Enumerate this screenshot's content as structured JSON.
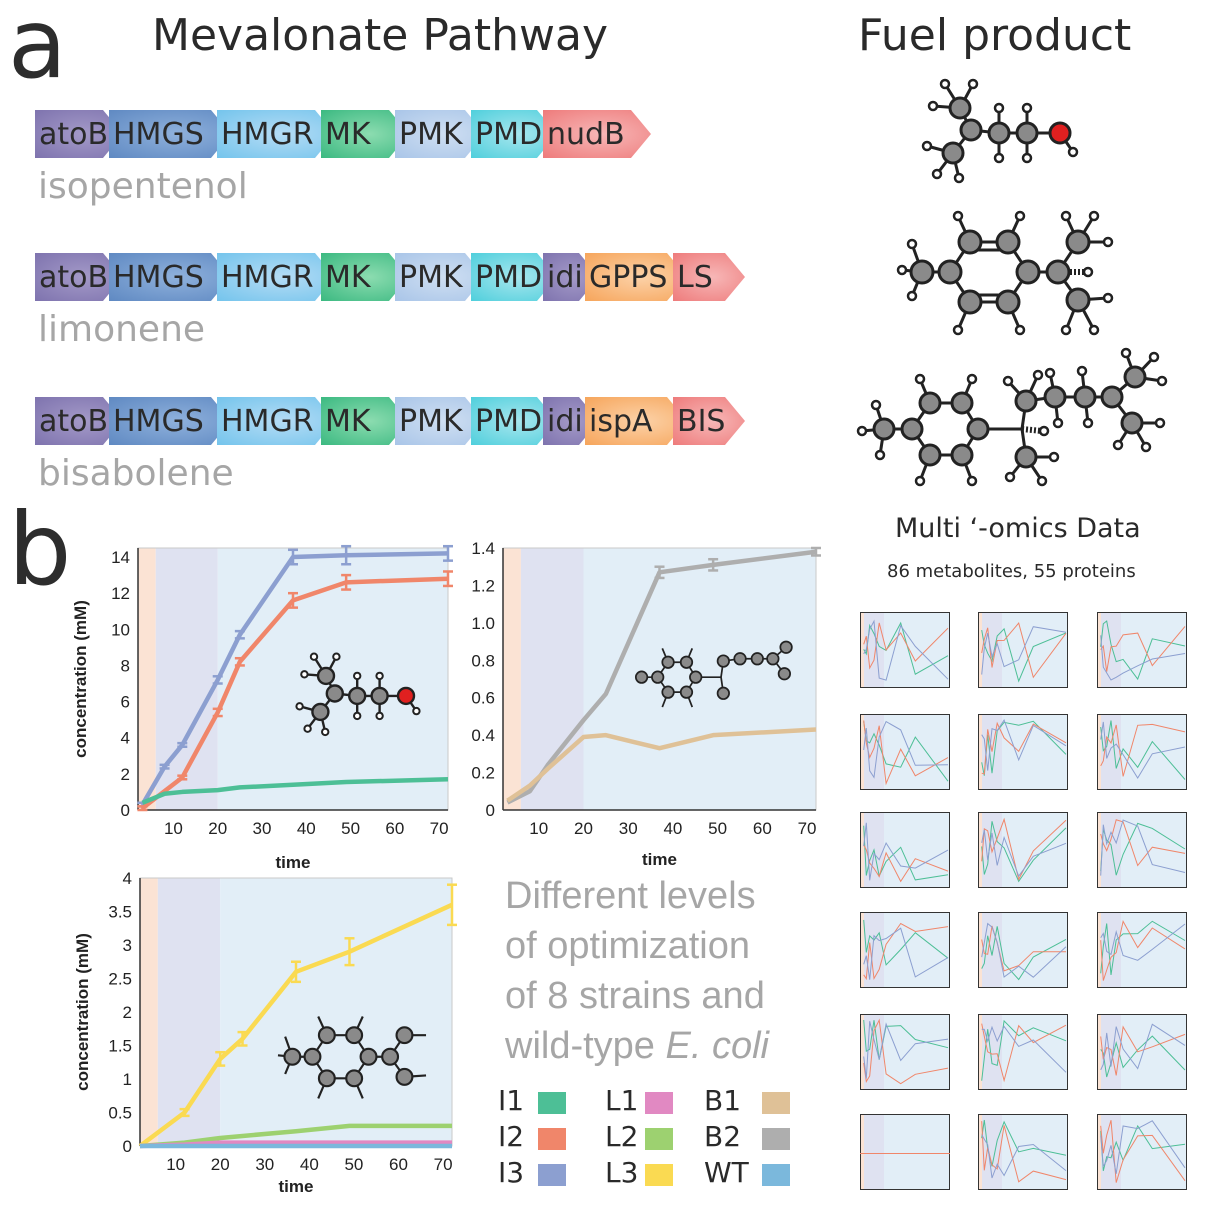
{
  "panel_a": {
    "letter": "a",
    "title_pathway": "Mevalonate Pathway",
    "title_product": "Fuel product",
    "pathways": [
      {
        "label": "isopentenol",
        "genes": [
          "atoB",
          "HMGS",
          "HMGR",
          "MK",
          "PMK",
          "PMD",
          "nudB"
        ]
      },
      {
        "label": "limonene",
        "genes": [
          "atoB",
          "HMGS",
          "HMGR",
          "MK",
          "PMK",
          "PMD",
          "idi",
          "GPPS",
          "LS"
        ]
      },
      {
        "label": "bisabolene",
        "genes": [
          "atoB",
          "HMGS",
          "HMGR",
          "MK",
          "PMK",
          "PMD",
          "idi",
          "ispA",
          "BIS"
        ]
      }
    ],
    "gene_colors": {
      "atoB": [
        "#a49ac8",
        "#7e73ae"
      ],
      "HMGS": [
        "#8fb1dc",
        "#5f89c2"
      ],
      "HMGR": [
        "#b5dcf5",
        "#74c4ec"
      ],
      "MK": [
        "#8cdcb0",
        "#3bb981"
      ],
      "PMK": [
        "#cfdff2",
        "#a9c5e8"
      ],
      "PMD": [
        "#a7e6ee",
        "#4fcfdc"
      ],
      "idi": [
        "#a49ac8",
        "#7e73ae"
      ],
      "GPPS": [
        "#fcd2a8",
        "#f6a55b"
      ],
      "ispA": [
        "#fcd2a8",
        "#f6a55b"
      ],
      "nudB": [
        "#f7b7b7",
        "#ee7b7b"
      ],
      "LS": [
        "#f7b7b7",
        "#ee7b7b"
      ],
      "BIS": [
        "#f7b7b7",
        "#ee7b7b"
      ]
    }
  },
  "panel_b": {
    "letter": "b",
    "omics_title": "Multi ‘-omics Data",
    "omics_subtitle": "86 metabolites, 55 proteins",
    "description": [
      "Different levels",
      "of optimization",
      "of 8 strains and"
    ],
    "description_last_prefix": "wild-type ",
    "description_last_italic": "E. coli",
    "legend": [
      {
        "label": "I1",
        "color": "#4dbf96"
      },
      {
        "label": "I2",
        "color": "#f0866a"
      },
      {
        "label": "I3",
        "color": "#8c9fd0"
      },
      {
        "label": "L1",
        "color": "#e189c2"
      },
      {
        "label": "L2",
        "color": "#9dd170"
      },
      {
        "label": "L3",
        "color": "#fada52"
      },
      {
        "label": "B1",
        "color": "#dfc197"
      },
      {
        "label": "B2",
        "color": "#aeaeae"
      },
      {
        "label": "WT",
        "color": "#7bb8dc"
      }
    ]
  },
  "chart_data": [
    {
      "type": "line",
      "xlabel": "time",
      "ylabel": "concentration (mM)",
      "xlim": [
        2,
        72
      ],
      "ylim": [
        0,
        14.5
      ],
      "xticks": [
        10,
        20,
        30,
        40,
        50,
        60,
        70
      ],
      "yticks": [
        0,
        2,
        4,
        6,
        8,
        10,
        12,
        14
      ],
      "series": [
        {
          "name": "I3",
          "color": "#8c9fd0",
          "x": [
            3,
            8,
            12,
            20,
            25,
            37,
            49,
            72
          ],
          "y": [
            0.3,
            2.4,
            3.6,
            7.2,
            9.7,
            14.0,
            14.1,
            14.2
          ],
          "err": [
            0.1,
            0.1,
            0.1,
            0.2,
            0.2,
            0.4,
            0.5,
            0.4
          ]
        },
        {
          "name": "I2",
          "color": "#f0866a",
          "x": [
            3,
            12,
            20,
            25,
            37,
            49,
            72
          ],
          "y": [
            0.1,
            1.8,
            5.4,
            8.2,
            11.6,
            12.6,
            12.8
          ],
          "err": [
            0.1,
            0.1,
            0.2,
            0.2,
            0.4,
            0.4,
            0.4
          ]
        },
        {
          "name": "I1",
          "color": "#4dbf96",
          "x": [
            3,
            8,
            12,
            20,
            25,
            37,
            49,
            72
          ],
          "y": [
            0.4,
            0.9,
            1.0,
            1.1,
            1.25,
            1.4,
            1.55,
            1.7
          ],
          "err": [
            0,
            0,
            0,
            0,
            0,
            0,
            0,
            0
          ]
        }
      ]
    },
    {
      "type": "line",
      "xlabel": "time",
      "ylabel": "",
      "xlim": [
        2,
        72
      ],
      "ylim": [
        0,
        1.4
      ],
      "xticks": [
        10,
        20,
        30,
        40,
        50,
        60,
        70
      ],
      "yticks": [
        0,
        0.2,
        0.4,
        0.6,
        0.8,
        1.0,
        1.2,
        1.4
      ],
      "series": [
        {
          "name": "B2",
          "color": "#aeaeae",
          "x": [
            3,
            8,
            12,
            20,
            25,
            37,
            49,
            72
          ],
          "y": [
            0.04,
            0.1,
            0.24,
            0.48,
            0.62,
            1.27,
            1.31,
            1.38
          ],
          "err": [
            0,
            0,
            0,
            0,
            0,
            0.03,
            0.03,
            0.02
          ]
        },
        {
          "name": "B1",
          "color": "#dfc197",
          "x": [
            3,
            8,
            12,
            20,
            25,
            37,
            49,
            72
          ],
          "y": [
            0.05,
            0.13,
            0.22,
            0.39,
            0.4,
            0.33,
            0.4,
            0.43
          ],
          "err": [
            0,
            0,
            0,
            0,
            0,
            0,
            0,
            0
          ]
        }
      ]
    },
    {
      "type": "line",
      "xlabel": "time",
      "ylabel": "concentration (mM)",
      "xlim": [
        2,
        72
      ],
      "ylim": [
        0,
        4
      ],
      "xticks": [
        10,
        20,
        30,
        40,
        50,
        60,
        70
      ],
      "yticks": [
        0,
        0.5,
        1,
        1.5,
        2,
        2.5,
        3,
        3.5,
        4
      ],
      "series": [
        {
          "name": "L3",
          "color": "#fada52",
          "x": [
            2,
            12,
            20,
            25,
            37,
            49,
            72
          ],
          "y": [
            0.0,
            0.5,
            1.3,
            1.6,
            2.6,
            2.9,
            3.6
          ],
          "err": [
            0,
            0.05,
            0.1,
            0.1,
            0.15,
            0.2,
            0.3
          ]
        },
        {
          "name": "L2",
          "color": "#9dd170",
          "x": [
            2,
            12,
            20,
            25,
            37,
            49,
            72
          ],
          "y": [
            0.0,
            0.05,
            0.12,
            0.15,
            0.22,
            0.3,
            0.3
          ],
          "err": [
            0,
            0,
            0,
            0,
            0,
            0,
            0
          ]
        },
        {
          "name": "L1",
          "color": "#e189c2",
          "x": [
            2,
            12,
            20,
            25,
            37,
            49,
            72
          ],
          "y": [
            0.0,
            0.02,
            0.05,
            0.05,
            0.05,
            0.05,
            0.05
          ],
          "err": [
            0,
            0,
            0,
            0,
            0,
            0,
            0
          ]
        },
        {
          "name": "WT",
          "color": "#7bb8dc",
          "x": [
            2,
            72
          ],
          "y": [
            0.0,
            0.0
          ],
          "err": [
            0,
            0
          ]
        }
      ]
    }
  ]
}
